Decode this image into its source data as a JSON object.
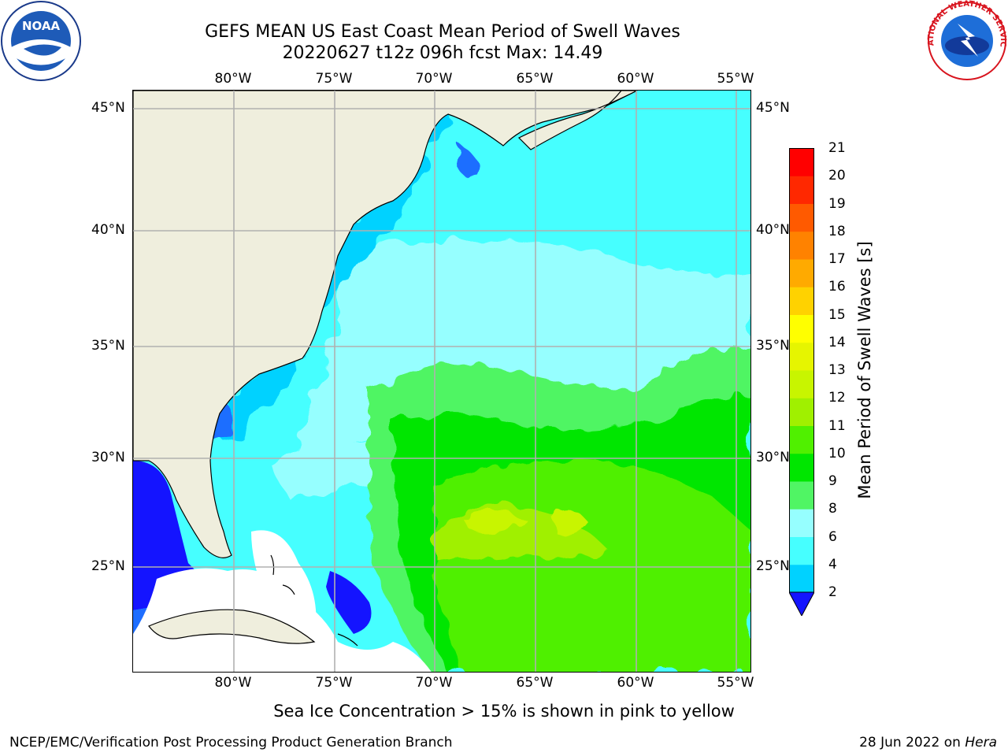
{
  "title": {
    "line1": "GEFS MEAN US East Coast Mean Period of Swell Waves",
    "line2": "20220627 t12z 096h fcst   Max: 14.49"
  },
  "map": {
    "lon_labels": [
      "80°W",
      "75°W",
      "70°W",
      "65°W",
      "60°W",
      "55°W"
    ],
    "lat_labels": [
      "45°N",
      "40°N",
      "35°N",
      "30°N",
      "25°N"
    ],
    "colors": {
      "land": "#efeedd",
      "ice": "#ffffff",
      "grid": "#b0b0b0",
      "coast": "#000000"
    }
  },
  "colorbar": {
    "label": "Mean Period of Swell Waves [s]",
    "ticks": [
      "2",
      "4",
      "6",
      "8",
      "9",
      "10",
      "11",
      "12",
      "13",
      "14",
      "15",
      "16",
      "17",
      "18",
      "19",
      "20",
      "21"
    ],
    "colors": [
      "#1e6eff",
      "#00d2ff",
      "#46ffff",
      "#96ffff",
      "#50f564",
      "#00e600",
      "#50f000",
      "#a0f000",
      "#c8f500",
      "#e6f500",
      "#ffff00",
      "#ffd200",
      "#ffaa00",
      "#ff8200",
      "#ff5a00",
      "#ff2800",
      "#ff0000"
    ],
    "extend_color": "#1414ff"
  },
  "logos": {
    "noaa_text": "NOAA",
    "nws_text": "NATIONAL WEATHER SERVICE"
  },
  "footer": {
    "note": "Sea Ice Concentration > 15% is shown in pink to yellow",
    "left": "NCEP/EMC/Verification Post Processing Product Generation Branch",
    "date": "28 Jun 2022 on",
    "host": "Hera"
  }
}
